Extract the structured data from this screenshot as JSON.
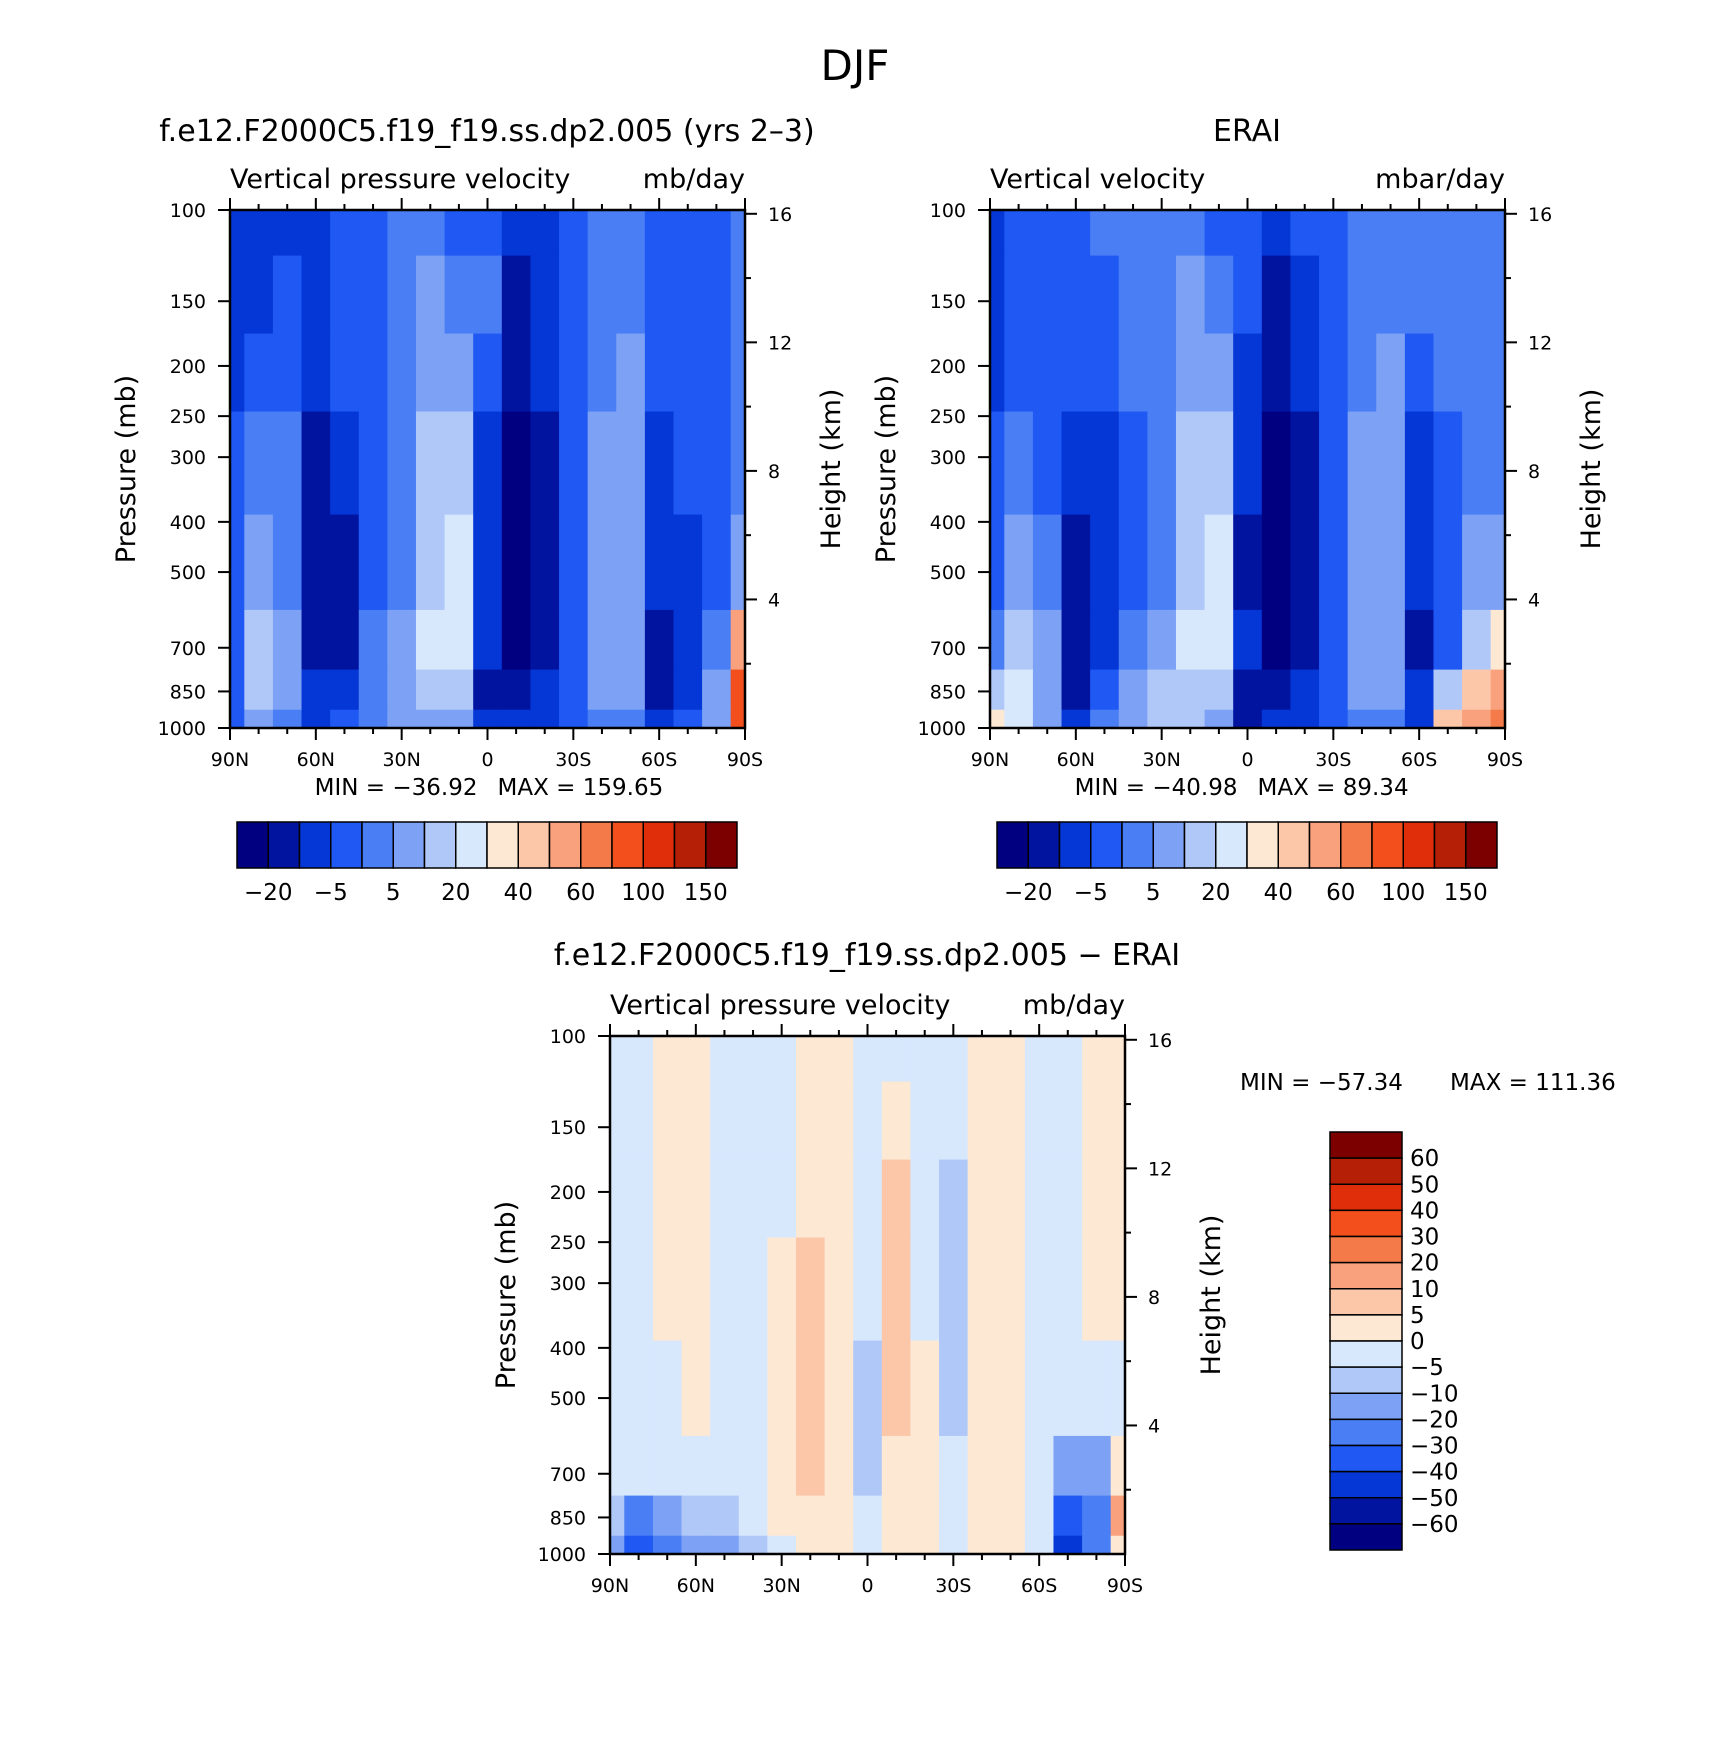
{
  "figure": {
    "title": "DJF"
  },
  "colors": {
    "abs_levels": [
      "#000080",
      "#0014a0",
      "#0537d6",
      "#1f58f2",
      "#4a7ef5",
      "#7da2f5",
      "#b0c8f8",
      "#d7e8fd",
      "#fde8d3",
      "#fbc7a8",
      "#f9a07c",
      "#f57a49",
      "#f24f1c",
      "#df2e09",
      "#b51f06",
      "#7d0000"
    ],
    "diff_levels": [
      "#000080",
      "#0014a0",
      "#0537d6",
      "#1f58f2",
      "#4a7ef5",
      "#7da2f5",
      "#b0c8f8",
      "#d7e8fd",
      "#fde8d3",
      "#fbc7a8",
      "#f9a07c",
      "#f57a49",
      "#f24f1c",
      "#df2e09",
      "#b51f06",
      "#7d0000"
    ]
  },
  "chart_data": [
    {
      "type": "heatmap",
      "id": "model",
      "title": "f.e12.F2000C5.f19_f19.ss.dp2.005 (yrs 2–3)",
      "subtitle_left": "Vertical pressure velocity",
      "subtitle_right": "mb/day",
      "ylabel": "Pressure (mb)",
      "y2label": "Height (km)",
      "x_ticks": [
        "90N",
        "60N",
        "30N",
        "0",
        "30S",
        "60S",
        "90S"
      ],
      "x_values": [
        90,
        60,
        30,
        0,
        -30,
        -60,
        -90
      ],
      "y_ticks": [
        "100",
        "150",
        "200",
        "250",
        "300",
        "400",
        "500",
        "700",
        "850",
        "1000"
      ],
      "y_values": [
        100,
        150,
        200,
        250,
        300,
        400,
        500,
        700,
        850,
        1000
      ],
      "y2_ticks": [
        "4",
        "8",
        "12",
        "16"
      ],
      "y2_values": [
        4,
        8,
        12,
        16
      ],
      "xlim": [
        90,
        -90
      ],
      "ylim": [
        1000,
        100
      ],
      "y_scale": "log",
      "min_label": "MIN = −36.92",
      "max_label": "MAX = 159.65",
      "colorbar_labels": [
        "−20",
        "−5",
        "5",
        "20",
        "40",
        "60",
        "100",
        "150"
      ],
      "colorbar_orientation": "horizontal",
      "field": {
        "lat": [
          90,
          80,
          70,
          60,
          50,
          40,
          30,
          20,
          10,
          0,
          -10,
          -20,
          -30,
          -40,
          -50,
          -60,
          -70,
          -80,
          -90
        ],
        "lev": [
          100,
          150,
          200,
          300,
          500,
          700,
          850,
          1000
        ],
        "levels_index": [
          [
            2,
            2,
            2,
            2,
            3,
            3,
            4,
            4,
            3,
            3,
            2,
            2,
            3,
            4,
            4,
            3,
            3,
            3,
            4
          ],
          [
            2,
            2,
            3,
            2,
            3,
            3,
            4,
            5,
            4,
            4,
            1,
            2,
            3,
            4,
            4,
            3,
            3,
            3,
            4
          ],
          [
            2,
            3,
            3,
            2,
            3,
            3,
            4,
            5,
            5,
            3,
            1,
            2,
            3,
            4,
            5,
            3,
            3,
            3,
            4
          ],
          [
            3,
            4,
            4,
            1,
            2,
            3,
            4,
            6,
            6,
            2,
            0,
            1,
            3,
            5,
            5,
            2,
            3,
            3,
            4
          ],
          [
            3,
            5,
            4,
            1,
            1,
            3,
            4,
            6,
            7,
            2,
            0,
            1,
            3,
            5,
            5,
            2,
            2,
            3,
            5
          ],
          [
            3,
            6,
            5,
            1,
            1,
            4,
            5,
            7,
            7,
            2,
            0,
            1,
            3,
            5,
            5,
            1,
            2,
            4,
            10
          ],
          [
            3,
            6,
            5,
            2,
            2,
            4,
            5,
            6,
            6,
            1,
            1,
            2,
            3,
            5,
            5,
            1,
            2,
            5,
            12
          ],
          [
            3,
            5,
            4,
            2,
            3,
            4,
            5,
            5,
            5,
            2,
            2,
            2,
            3,
            4,
            4,
            2,
            3,
            5,
            12
          ]
        ]
      }
    },
    {
      "type": "heatmap",
      "id": "obs",
      "title": "ERAI",
      "subtitle_left": "Vertical velocity",
      "subtitle_right": "mbar/day",
      "ylabel": "Pressure (mb)",
      "y2label": "Height (km)",
      "x_ticks": [
        "90N",
        "60N",
        "30N",
        "0",
        "30S",
        "60S",
        "90S"
      ],
      "x_values": [
        90,
        60,
        30,
        0,
        -30,
        -60,
        -90
      ],
      "y_ticks": [
        "100",
        "150",
        "200",
        "250",
        "300",
        "400",
        "500",
        "700",
        "850",
        "1000"
      ],
      "y_values": [
        100,
        150,
        200,
        250,
        300,
        400,
        500,
        700,
        850,
        1000
      ],
      "y2_ticks": [
        "4",
        "8",
        "12",
        "16"
      ],
      "y2_values": [
        4,
        8,
        12,
        16
      ],
      "xlim": [
        90,
        -90
      ],
      "ylim": [
        1000,
        100
      ],
      "y_scale": "log",
      "min_label": "MIN = −40.98",
      "max_label": "MAX =   89.34",
      "colorbar_labels": [
        "−20",
        "−5",
        "5",
        "20",
        "40",
        "60",
        "100",
        "150"
      ],
      "colorbar_orientation": "horizontal",
      "field": {
        "lat": [
          90,
          80,
          70,
          60,
          50,
          40,
          30,
          20,
          10,
          0,
          -10,
          -20,
          -30,
          -40,
          -50,
          -60,
          -70,
          -80,
          -90
        ],
        "lev": [
          100,
          150,
          200,
          300,
          500,
          700,
          850,
          1000
        ],
        "levels_index": [
          [
            2,
            3,
            3,
            3,
            4,
            4,
            4,
            4,
            3,
            3,
            2,
            3,
            3,
            4,
            4,
            4,
            4,
            4,
            4
          ],
          [
            2,
            3,
            3,
            3,
            3,
            4,
            4,
            5,
            4,
            3,
            1,
            2,
            3,
            4,
            4,
            4,
            4,
            4,
            4
          ],
          [
            2,
            3,
            3,
            3,
            3,
            4,
            4,
            5,
            5,
            2,
            1,
            2,
            3,
            4,
            5,
            3,
            4,
            4,
            4
          ],
          [
            3,
            4,
            3,
            2,
            2,
            3,
            4,
            6,
            6,
            2,
            0,
            1,
            3,
            5,
            5,
            2,
            3,
            4,
            4
          ],
          [
            3,
            5,
            4,
            1,
            2,
            3,
            4,
            6,
            7,
            1,
            0,
            1,
            3,
            5,
            5,
            2,
            3,
            5,
            5
          ],
          [
            4,
            6,
            5,
            1,
            2,
            4,
            5,
            7,
            7,
            2,
            0,
            1,
            3,
            5,
            5,
            1,
            3,
            6,
            8
          ],
          [
            6,
            7,
            5,
            1,
            3,
            5,
            6,
            6,
            6,
            1,
            1,
            2,
            3,
            5,
            5,
            2,
            6,
            9,
            10
          ],
          [
            8,
            7,
            5,
            2,
            4,
            5,
            6,
            6,
            5,
            1,
            2,
            2,
            3,
            4,
            4,
            2,
            9,
            10,
            11
          ]
        ]
      }
    },
    {
      "type": "heatmap",
      "id": "diff",
      "title": "f.e12.F2000C5.f19_f19.ss.dp2.005 − ERAI",
      "subtitle_left": "Vertical pressure velocity",
      "subtitle_right": "mb/day",
      "ylabel": "Pressure (mb)",
      "y2label": "Height (km)",
      "x_ticks": [
        "90N",
        "60N",
        "30N",
        "0",
        "30S",
        "60S",
        "90S"
      ],
      "x_values": [
        90,
        60,
        30,
        0,
        -30,
        -60,
        -90
      ],
      "y_ticks": [
        "100",
        "150",
        "200",
        "250",
        "300",
        "400",
        "500",
        "700",
        "850",
        "1000"
      ],
      "y_values": [
        100,
        150,
        200,
        250,
        300,
        400,
        500,
        700,
        850,
        1000
      ],
      "y2_ticks": [
        "4",
        "8",
        "12",
        "16"
      ],
      "y2_values": [
        4,
        8,
        12,
        16
      ],
      "xlim": [
        90,
        -90
      ],
      "ylim": [
        1000,
        100
      ],
      "y_scale": "log",
      "min_label": "MIN = −57.34",
      "max_label": "MAX = 111.36",
      "colorbar_labels": [
        "60",
        "50",
        "40",
        "30",
        "20",
        "10",
        "5",
        "0",
        "−5",
        "−10",
        "−20",
        "−30",
        "−40",
        "−50",
        "−60"
      ],
      "colorbar_orientation": "vertical",
      "field": {
        "lat": [
          90,
          80,
          70,
          60,
          50,
          40,
          30,
          20,
          10,
          0,
          -10,
          -20,
          -30,
          -40,
          -50,
          -60,
          -70,
          -80,
          -90
        ],
        "lev": [
          100,
          150,
          200,
          300,
          500,
          700,
          850,
          1000
        ],
        "levels_index": [
          [
            7,
            7,
            8,
            8,
            7,
            7,
            7,
            8,
            8,
            7,
            7,
            7,
            7,
            8,
            8,
            7,
            7,
            8,
            8
          ],
          [
            7,
            7,
            8,
            8,
            7,
            7,
            7,
            8,
            8,
            7,
            8,
            7,
            7,
            8,
            8,
            7,
            7,
            8,
            8
          ],
          [
            7,
            7,
            8,
            8,
            7,
            7,
            7,
            8,
            8,
            7,
            9,
            7,
            6,
            8,
            8,
            7,
            7,
            8,
            8
          ],
          [
            7,
            7,
            8,
            8,
            7,
            7,
            8,
            9,
            8,
            7,
            9,
            7,
            6,
            8,
            8,
            7,
            7,
            8,
            8
          ],
          [
            7,
            7,
            7,
            8,
            7,
            7,
            8,
            9,
            8,
            6,
            9,
            8,
            6,
            8,
            8,
            7,
            7,
            7,
            7
          ],
          [
            7,
            7,
            7,
            7,
            7,
            7,
            8,
            9,
            8,
            6,
            8,
            8,
            7,
            8,
            8,
            7,
            5,
            5,
            8
          ],
          [
            6,
            4,
            5,
            6,
            6,
            7,
            8,
            8,
            8,
            7,
            8,
            8,
            7,
            8,
            8,
            7,
            3,
            4,
            10
          ],
          [
            5,
            3,
            4,
            5,
            5,
            6,
            7,
            8,
            8,
            7,
            8,
            8,
            7,
            8,
            8,
            7,
            2,
            4,
            8
          ]
        ]
      }
    }
  ]
}
